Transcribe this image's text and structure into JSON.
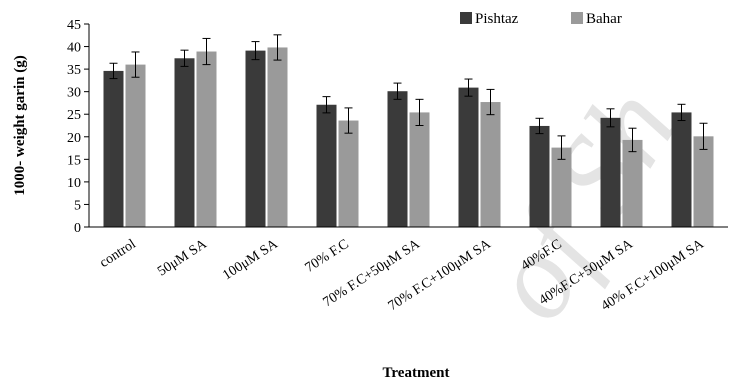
{
  "chart_data": {
    "type": "bar",
    "title": "",
    "xlabel": "Treatment",
    "ylabel": "1000- weight garin (g)",
    "ylim": [
      0,
      45
    ],
    "ytick_step": 5,
    "grid": false,
    "legend_position": "top-right",
    "categories": [
      "control",
      "50μM SA",
      "100μM SA",
      "70% F.C",
      "70% F.C+50μM SA",
      "70% F.C+100μM SA",
      "40%F.C",
      "40%F.C+50μM SA",
      "40% F.C+100μM SA"
    ],
    "series": [
      {
        "name": "Pishtaz",
        "color": "#3a3a3a",
        "values": [
          34.6,
          37.4,
          39.1,
          27.1,
          30.1,
          30.9,
          22.4,
          24.2,
          25.4
        ],
        "errors": [
          1.7,
          1.8,
          2.0,
          1.8,
          1.8,
          1.9,
          1.7,
          2.0,
          1.8
        ]
      },
      {
        "name": "Bahar",
        "color": "#9a9a9a",
        "values": [
          36.0,
          38.9,
          39.8,
          23.6,
          25.4,
          27.7,
          17.6,
          19.3,
          20.1
        ],
        "errors": [
          2.8,
          2.9,
          2.8,
          2.8,
          2.9,
          2.8,
          2.6,
          2.6,
          2.9
        ]
      }
    ]
  }
}
